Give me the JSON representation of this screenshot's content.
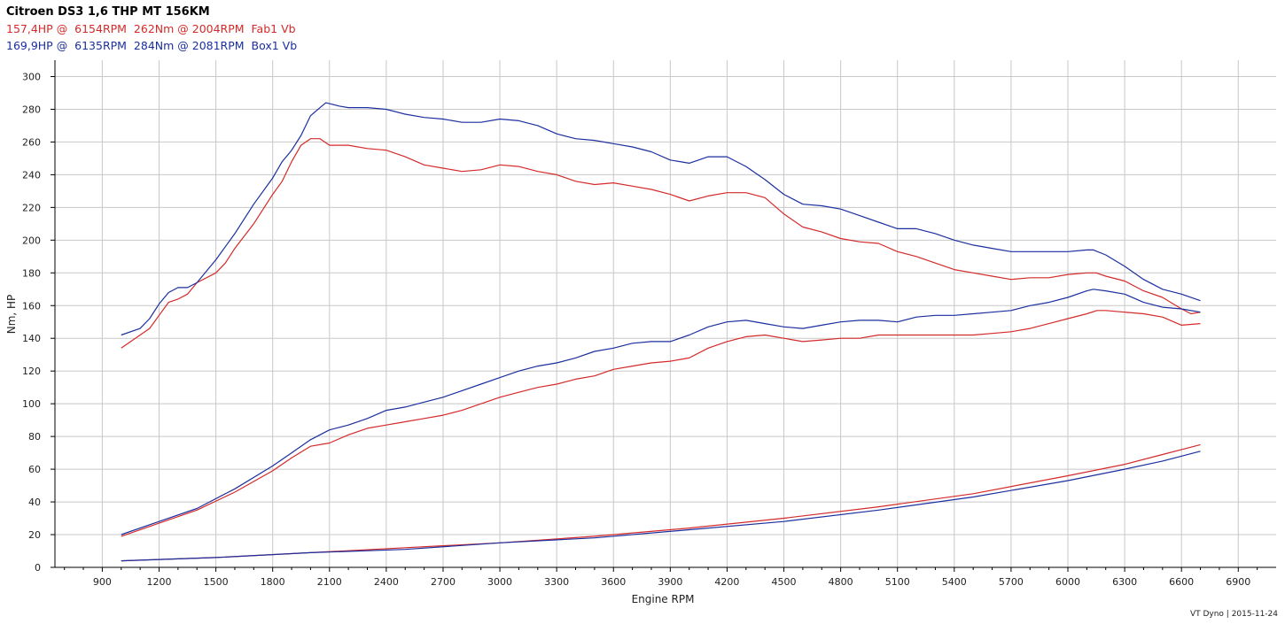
{
  "header": {
    "title": "Citroen DS3 1,6 THP MT 156KM",
    "line_red": "157,4HP @  6154RPM  262Nm @ 2004RPM  Fab1 Vb",
    "line_blue": "169,9HP @  6135RPM  284Nm @ 2081RPM  Box1 Vb"
  },
  "footer": "VT Dyno | 2015-11-24",
  "colors": {
    "red": "#d42a2a",
    "blue": "#1b2f9e",
    "grid": "#c8c8c8",
    "axis": "#000000"
  },
  "chart_data": {
    "type": "line",
    "xlabel": "Engine RPM",
    "ylabel": "Nm, HP",
    "xlim": [
      650,
      7100
    ],
    "ylim": [
      0,
      310
    ],
    "grid": true,
    "xticks": [
      900,
      1200,
      1500,
      1800,
      2100,
      2400,
      2700,
      3000,
      3300,
      3600,
      3900,
      4200,
      4500,
      4800,
      5100,
      5400,
      5700,
      6000,
      6300,
      6600,
      6900
    ],
    "yticks": [
      0,
      20,
      40,
      60,
      80,
      100,
      120,
      140,
      160,
      180,
      200,
      220,
      240,
      260,
      280,
      300
    ],
    "series": [
      {
        "name": "Fab1 Vb",
        "color": "red",
        "torque": [
          [
            1000,
            134
          ],
          [
            1100,
            142
          ],
          [
            1150,
            146
          ],
          [
            1200,
            154
          ],
          [
            1250,
            162
          ],
          [
            1300,
            164
          ],
          [
            1350,
            167
          ],
          [
            1400,
            174
          ],
          [
            1500,
            180
          ],
          [
            1550,
            186
          ],
          [
            1600,
            195
          ],
          [
            1700,
            210
          ],
          [
            1800,
            228
          ],
          [
            1850,
            236
          ],
          [
            1900,
            248
          ],
          [
            1950,
            258
          ],
          [
            2000,
            262
          ],
          [
            2050,
            262
          ],
          [
            2100,
            258
          ],
          [
            2200,
            258
          ],
          [
            2300,
            256
          ],
          [
            2400,
            255
          ],
          [
            2500,
            251
          ],
          [
            2600,
            246
          ],
          [
            2700,
            244
          ],
          [
            2800,
            242
          ],
          [
            2900,
            243
          ],
          [
            3000,
            246
          ],
          [
            3100,
            245
          ],
          [
            3200,
            242
          ],
          [
            3300,
            240
          ],
          [
            3400,
            236
          ],
          [
            3500,
            234
          ],
          [
            3600,
            235
          ],
          [
            3700,
            233
          ],
          [
            3800,
            231
          ],
          [
            3900,
            228
          ],
          [
            4000,
            224
          ],
          [
            4100,
            227
          ],
          [
            4200,
            229
          ],
          [
            4300,
            229
          ],
          [
            4400,
            226
          ],
          [
            4500,
            216
          ],
          [
            4600,
            208
          ],
          [
            4700,
            205
          ],
          [
            4800,
            201
          ],
          [
            4900,
            199
          ],
          [
            5000,
            198
          ],
          [
            5100,
            193
          ],
          [
            5200,
            190
          ],
          [
            5300,
            186
          ],
          [
            5400,
            182
          ],
          [
            5500,
            180
          ],
          [
            5600,
            178
          ],
          [
            5700,
            176
          ],
          [
            5800,
            177
          ],
          [
            5900,
            177
          ],
          [
            6000,
            179
          ],
          [
            6100,
            180
          ],
          [
            6150,
            180
          ],
          [
            6200,
            178
          ],
          [
            6300,
            175
          ],
          [
            6400,
            169
          ],
          [
            6500,
            165
          ],
          [
            6600,
            158
          ],
          [
            6650,
            155
          ],
          [
            6700,
            156
          ]
        ],
        "power": [
          [
            1000,
            19
          ],
          [
            1200,
            27
          ],
          [
            1400,
            35
          ],
          [
            1600,
            46
          ],
          [
            1800,
            59
          ],
          [
            1900,
            67
          ],
          [
            2000,
            74
          ],
          [
            2100,
            76
          ],
          [
            2200,
            81
          ],
          [
            2300,
            85
          ],
          [
            2400,
            87
          ],
          [
            2500,
            89
          ],
          [
            2600,
            91
          ],
          [
            2700,
            93
          ],
          [
            2800,
            96
          ],
          [
            2900,
            100
          ],
          [
            3000,
            104
          ],
          [
            3100,
            107
          ],
          [
            3200,
            110
          ],
          [
            3300,
            112
          ],
          [
            3400,
            115
          ],
          [
            3500,
            117
          ],
          [
            3600,
            121
          ],
          [
            3700,
            123
          ],
          [
            3800,
            125
          ],
          [
            3900,
            126
          ],
          [
            4000,
            128
          ],
          [
            4100,
            134
          ],
          [
            4200,
            138
          ],
          [
            4300,
            141
          ],
          [
            4400,
            142
          ],
          [
            4500,
            140
          ],
          [
            4600,
            138
          ],
          [
            4700,
            139
          ],
          [
            4800,
            140
          ],
          [
            4900,
            140
          ],
          [
            5000,
            142
          ],
          [
            5100,
            142
          ],
          [
            5200,
            142
          ],
          [
            5300,
            142
          ],
          [
            5400,
            142
          ],
          [
            5500,
            142
          ],
          [
            5600,
            143
          ],
          [
            5700,
            144
          ],
          [
            5800,
            146
          ],
          [
            5900,
            149
          ],
          [
            6000,
            152
          ],
          [
            6100,
            155
          ],
          [
            6154,
            157
          ],
          [
            6200,
            157
          ],
          [
            6300,
            156
          ],
          [
            6400,
            155
          ],
          [
            6500,
            153
          ],
          [
            6600,
            148
          ],
          [
            6700,
            149
          ]
        ],
        "loss": [
          [
            1000,
            4
          ],
          [
            1500,
            6
          ],
          [
            2000,
            9
          ],
          [
            2500,
            12
          ],
          [
            3000,
            15
          ],
          [
            3500,
            19
          ],
          [
            4000,
            24
          ],
          [
            4500,
            30
          ],
          [
            5000,
            37
          ],
          [
            5500,
            45
          ],
          [
            6000,
            56
          ],
          [
            6300,
            63
          ],
          [
            6500,
            69
          ],
          [
            6700,
            75
          ]
        ]
      },
      {
        "name": "Box1 Vb",
        "color": "blue",
        "torque": [
          [
            1000,
            142
          ],
          [
            1100,
            146
          ],
          [
            1150,
            152
          ],
          [
            1200,
            161
          ],
          [
            1250,
            168
          ],
          [
            1300,
            171
          ],
          [
            1350,
            171
          ],
          [
            1400,
            174
          ],
          [
            1500,
            188
          ],
          [
            1550,
            196
          ],
          [
            1600,
            204
          ],
          [
            1700,
            222
          ],
          [
            1800,
            238
          ],
          [
            1850,
            248
          ],
          [
            1900,
            255
          ],
          [
            1950,
            264
          ],
          [
            2000,
            276
          ],
          [
            2050,
            281
          ],
          [
            2081,
            284
          ],
          [
            2150,
            282
          ],
          [
            2200,
            281
          ],
          [
            2300,
            281
          ],
          [
            2400,
            280
          ],
          [
            2500,
            277
          ],
          [
            2600,
            275
          ],
          [
            2700,
            274
          ],
          [
            2800,
            272
          ],
          [
            2900,
            272
          ],
          [
            3000,
            274
          ],
          [
            3100,
            273
          ],
          [
            3200,
            270
          ],
          [
            3300,
            265
          ],
          [
            3400,
            262
          ],
          [
            3500,
            261
          ],
          [
            3600,
            259
          ],
          [
            3700,
            257
          ],
          [
            3800,
            254
          ],
          [
            3900,
            249
          ],
          [
            4000,
            247
          ],
          [
            4100,
            251
          ],
          [
            4200,
            251
          ],
          [
            4300,
            245
          ],
          [
            4400,
            237
          ],
          [
            4500,
            228
          ],
          [
            4600,
            222
          ],
          [
            4700,
            221
          ],
          [
            4800,
            219
          ],
          [
            4900,
            215
          ],
          [
            5000,
            211
          ],
          [
            5100,
            207
          ],
          [
            5200,
            207
          ],
          [
            5300,
            204
          ],
          [
            5400,
            200
          ],
          [
            5500,
            197
          ],
          [
            5600,
            195
          ],
          [
            5700,
            193
          ],
          [
            5800,
            193
          ],
          [
            5900,
            193
          ],
          [
            6000,
            193
          ],
          [
            6100,
            194
          ],
          [
            6135,
            194
          ],
          [
            6200,
            191
          ],
          [
            6300,
            184
          ],
          [
            6400,
            176
          ],
          [
            6500,
            170
          ],
          [
            6600,
            167
          ],
          [
            6700,
            163
          ]
        ],
        "power": [
          [
            1000,
            20
          ],
          [
            1200,
            28
          ],
          [
            1400,
            36
          ],
          [
            1600,
            48
          ],
          [
            1800,
            62
          ],
          [
            1900,
            70
          ],
          [
            2000,
            78
          ],
          [
            2100,
            84
          ],
          [
            2200,
            87
          ],
          [
            2300,
            91
          ],
          [
            2400,
            96
          ],
          [
            2500,
            98
          ],
          [
            2600,
            101
          ],
          [
            2700,
            104
          ],
          [
            2800,
            108
          ],
          [
            2900,
            112
          ],
          [
            3000,
            116
          ],
          [
            3100,
            120
          ],
          [
            3200,
            123
          ],
          [
            3300,
            125
          ],
          [
            3400,
            128
          ],
          [
            3500,
            132
          ],
          [
            3600,
            134
          ],
          [
            3700,
            137
          ],
          [
            3800,
            138
          ],
          [
            3900,
            138
          ],
          [
            4000,
            142
          ],
          [
            4100,
            147
          ],
          [
            4200,
            150
          ],
          [
            4300,
            151
          ],
          [
            4400,
            149
          ],
          [
            4500,
            147
          ],
          [
            4600,
            146
          ],
          [
            4700,
            148
          ],
          [
            4800,
            150
          ],
          [
            4900,
            151
          ],
          [
            5000,
            151
          ],
          [
            5100,
            150
          ],
          [
            5200,
            153
          ],
          [
            5300,
            154
          ],
          [
            5400,
            154
          ],
          [
            5500,
            155
          ],
          [
            5600,
            156
          ],
          [
            5700,
            157
          ],
          [
            5800,
            160
          ],
          [
            5900,
            162
          ],
          [
            6000,
            165
          ],
          [
            6100,
            169
          ],
          [
            6135,
            170
          ],
          [
            6200,
            169
          ],
          [
            6300,
            167
          ],
          [
            6400,
            162
          ],
          [
            6500,
            159
          ],
          [
            6600,
            158
          ],
          [
            6700,
            156
          ]
        ],
        "loss": [
          [
            1000,
            4
          ],
          [
            1500,
            6
          ],
          [
            2000,
            9
          ],
          [
            2500,
            11
          ],
          [
            3000,
            15
          ],
          [
            3500,
            18
          ],
          [
            4000,
            23
          ],
          [
            4500,
            28
          ],
          [
            5000,
            35
          ],
          [
            5500,
            43
          ],
          [
            6000,
            53
          ],
          [
            6300,
            60
          ],
          [
            6500,
            65
          ],
          [
            6700,
            71
          ]
        ]
      }
    ]
  }
}
